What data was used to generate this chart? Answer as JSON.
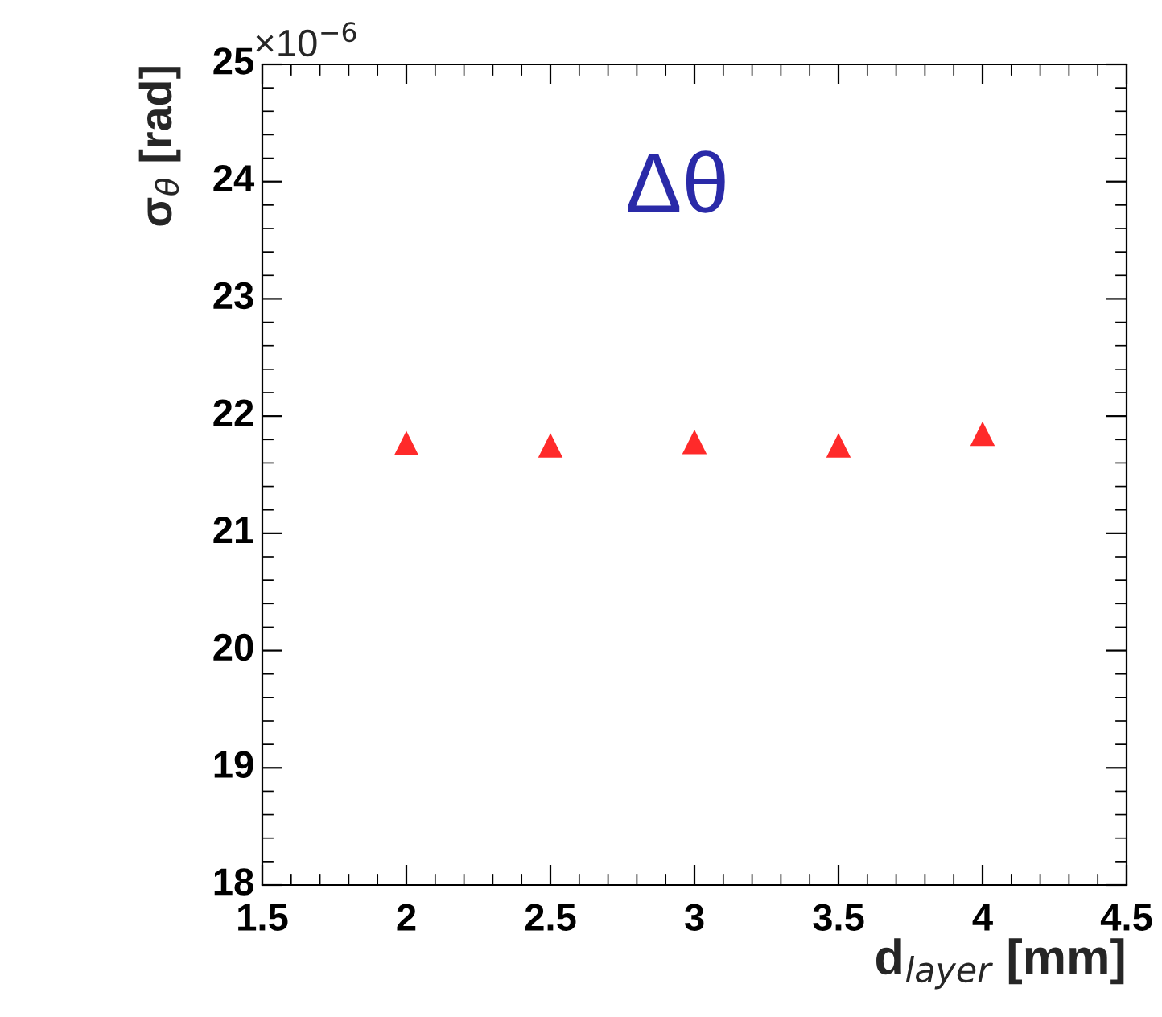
{
  "chart_data": {
    "type": "scatter",
    "xlabel": "d$_{layer}$ [mm]",
    "ylabel": "σ$_{θ}$ [rad]",
    "annotations": [
      "Δθ",
      "×10$^{−6}$"
    ],
    "x": [
      2,
      2.5,
      3,
      3.5,
      4
    ],
    "series": [
      {
        "color": "#ff2a2a",
        "values": [
          21.77,
          21.75,
          21.78,
          21.75,
          21.85
        ]
      }
    ],
    "marker": "triangle",
    "xlim": [
      1.5,
      4.5
    ],
    "xticks": [
      1.5,
      2,
      2.5,
      3,
      3.5,
      4,
      4.5
    ],
    "ylim": [
      18,
      25
    ],
    "yticks": [
      18,
      19,
      20,
      21,
      22,
      23,
      24,
      25
    ],
    "grid": false,
    "legend": false
  }
}
